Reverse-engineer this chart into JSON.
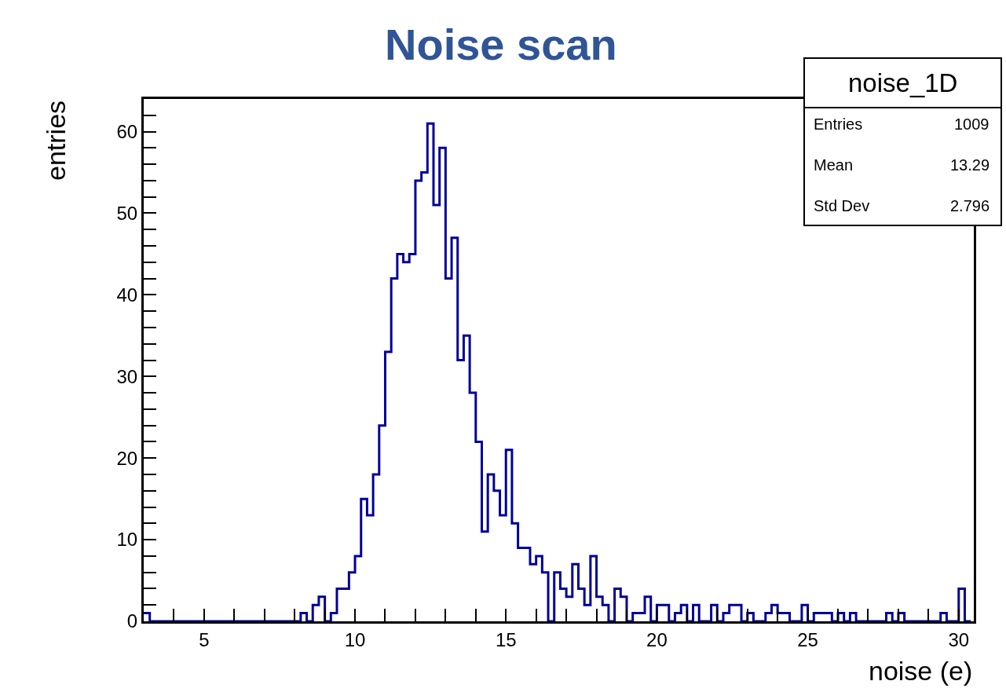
{
  "chart_data": {
    "type": "histogram",
    "title": "Noise scan",
    "xlabel": "noise (e)",
    "ylabel": "entries",
    "annotations": [
      "noise_1D",
      "Entries",
      "1009",
      "Mean",
      "13.29",
      "Std Dev",
      "2.796"
    ],
    "bins": [
      3.0,
      3.2,
      3.4,
      3.6,
      3.8,
      4.0,
      4.2,
      4.4,
      4.6,
      4.8,
      5.0,
      5.2,
      5.4,
      5.6,
      5.8,
      6.0,
      6.2,
      6.4,
      6.6,
      6.8,
      7.0,
      7.2,
      7.4,
      7.6,
      7.8,
      8.0,
      8.2,
      8.4,
      8.6,
      8.8,
      9.0,
      9.2,
      9.4,
      9.6,
      9.8,
      10.0,
      10.2,
      10.4,
      10.6,
      10.8,
      11.0,
      11.2,
      11.4,
      11.6,
      11.8,
      12.0,
      12.2,
      12.4,
      12.6,
      12.8,
      13.0,
      13.2,
      13.4,
      13.6,
      13.8,
      14.0,
      14.2,
      14.4,
      14.6,
      14.8,
      15.0,
      15.2,
      15.4,
      15.6,
      15.8,
      16.0,
      16.2,
      16.4,
      16.6,
      16.8,
      17.0,
      17.2,
      17.4,
      17.6,
      17.8,
      18.0,
      18.2,
      18.4,
      18.6,
      18.8,
      19.0,
      19.2,
      19.4,
      19.6,
      19.8,
      20.0,
      20.2,
      20.4,
      20.6,
      20.8,
      21.0,
      21.2,
      21.4,
      21.6,
      21.8,
      22.0,
      22.2,
      22.4,
      22.6,
      22.8,
      23.0,
      23.2,
      23.4,
      23.6,
      23.8,
      24.0,
      24.2,
      24.4,
      24.6,
      24.8,
      25.0,
      25.2,
      25.4,
      25.6,
      25.8,
      26.0,
      26.2,
      26.4,
      26.6,
      26.8,
      27.0,
      27.2,
      27.4,
      27.6,
      27.8,
      28.0,
      28.2,
      28.4,
      28.6,
      28.8,
      29.0,
      29.2,
      29.4,
      29.6,
      29.8,
      30.0,
      30.2,
      30.4
    ],
    "values": [
      1,
      0,
      0,
      0,
      0,
      0,
      0,
      0,
      0,
      0,
      0,
      0,
      0,
      0,
      0,
      0,
      0,
      0,
      0,
      0,
      0,
      0,
      0,
      0,
      0,
      0,
      1,
      0,
      2,
      3,
      0,
      1,
      4,
      4,
      6,
      8,
      15,
      13,
      18,
      24,
      33,
      42,
      45,
      44,
      45,
      54,
      55,
      61,
      51,
      58,
      42,
      47,
      32,
      35,
      28,
      22,
      11,
      18,
      16,
      13,
      21,
      12,
      9,
      9,
      7,
      8,
      6,
      0,
      6,
      4,
      3,
      7,
      4,
      2,
      8,
      3,
      2,
      0,
      4,
      3,
      0,
      1,
      1,
      3,
      0,
      2,
      2,
      0,
      1,
      2,
      0,
      2,
      0,
      0,
      2,
      0,
      1,
      2,
      2,
      0,
      1,
      0,
      0,
      1,
      2,
      1,
      1,
      0,
      0,
      2,
      0,
      1,
      1,
      1,
      0,
      1,
      0,
      1,
      0,
      0,
      0,
      0,
      0,
      1,
      0,
      1,
      0,
      0,
      0,
      0,
      0,
      0,
      1,
      0,
      0,
      4,
      0
    ],
    "color": "#000099",
    "xlim": [
      3.0,
      30.5
    ],
    "xticks": [
      {
        "value": 3,
        "label": null
      },
      {
        "value": 4,
        "label": null
      },
      5,
      {
        "value": 6,
        "label": null
      },
      {
        "value": 7,
        "label": null
      },
      {
        "value": 8,
        "label": null
      },
      {
        "value": 9,
        "label": null
      },
      10,
      {
        "value": 11,
        "label": null
      },
      {
        "value": 12,
        "label": null
      },
      {
        "value": 13,
        "label": null
      },
      {
        "value": 14,
        "label": null
      },
      15,
      {
        "value": 16,
        "label": null
      },
      {
        "value": 17,
        "label": null
      },
      {
        "value": 18,
        "label": null
      },
      {
        "value": 19,
        "label": null
      },
      20,
      {
        "value": 21,
        "label": null
      },
      {
        "value": 22,
        "label": null
      },
      {
        "value": 23,
        "label": null
      },
      {
        "value": 24,
        "label": null
      },
      25,
      {
        "value": 26,
        "label": null
      },
      {
        "value": 27,
        "label": null
      },
      {
        "value": 28,
        "label": null
      },
      {
        "value": 29,
        "label": null
      },
      30
    ],
    "ylim": [
      0,
      64
    ],
    "yticks": [
      0,
      {
        "value": 2,
        "label": null
      },
      {
        "value": 4,
        "label": null
      },
      {
        "value": 6,
        "label": null
      },
      {
        "value": 8,
        "label": null
      },
      10,
      {
        "value": 12,
        "label": null
      },
      {
        "value": 14,
        "label": null
      },
      {
        "value": 16,
        "label": null
      },
      {
        "value": 18,
        "label": null
      },
      20,
      {
        "value": 22,
        "label": null
      },
      {
        "value": 24,
        "label": null
      },
      {
        "value": 26,
        "label": null
      },
      {
        "value": 28,
        "label": null
      },
      30,
      {
        "value": 32,
        "label": null
      },
      {
        "value": 34,
        "label": null
      },
      {
        "value": 36,
        "label": null
      },
      {
        "value": 38,
        "label": null
      },
      40,
      {
        "value": 42,
        "label": null
      },
      {
        "value": 44,
        "label": null
      },
      {
        "value": 46,
        "label": null
      },
      {
        "value": 48,
        "label": null
      },
      50,
      {
        "value": 52,
        "label": null
      },
      {
        "value": 54,
        "label": null
      },
      {
        "value": 56,
        "label": null
      },
      {
        "value": 58,
        "label": null
      },
      60,
      {
        "value": 62,
        "label": null
      }
    ]
  }
}
